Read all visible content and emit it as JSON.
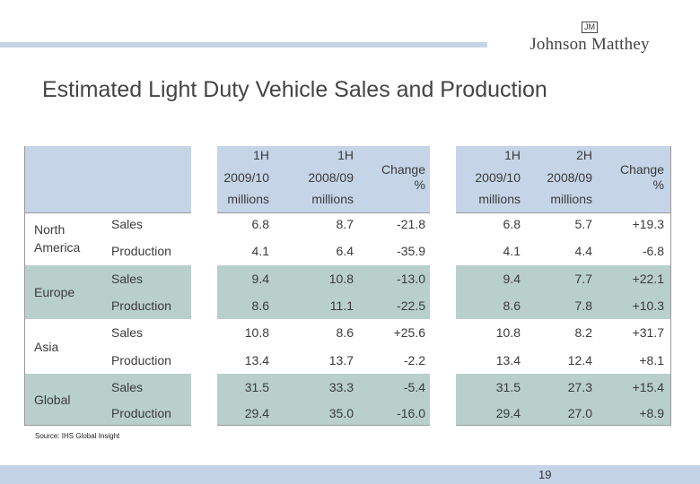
{
  "logo": {
    "mark": "JM",
    "name": "Johnson Matthey"
  },
  "title": "Estimated Light Duty Vehicle Sales and Production",
  "headers": {
    "group1": [
      {
        "l1": "1H",
        "l2": "2009/10",
        "l3": "millions"
      },
      {
        "l1": "1H",
        "l2": "2008/09",
        "l3": "millions"
      },
      {
        "l1": "Change",
        "l2": "%"
      }
    ],
    "group2": [
      {
        "l1": "1H",
        "l2": "2009/10",
        "l3": "millions"
      },
      {
        "l1": "2H",
        "l2": "2008/09",
        "l3": "millions"
      },
      {
        "l1": "Change",
        "l2": "%"
      }
    ]
  },
  "regions": [
    {
      "name": "North America",
      "rows": [
        {
          "type": "Sales",
          "v": [
            "6.8",
            "8.7",
            "-21.8",
            "6.8",
            "5.7",
            "+19.3"
          ]
        },
        {
          "type": "Production",
          "v": [
            "4.1",
            "6.4",
            "-35.9",
            "4.1",
            "4.4",
            "-6.8"
          ]
        }
      ]
    },
    {
      "name": "Europe",
      "rows": [
        {
          "type": "Sales",
          "v": [
            "9.4",
            "10.8",
            "-13.0",
            "9.4",
            "7.7",
            "+22.1"
          ]
        },
        {
          "type": "Production",
          "v": [
            "8.6",
            "11.1",
            "-22.5",
            "8.6",
            "7.8",
            "+10.3"
          ]
        }
      ]
    },
    {
      "name": "Asia",
      "rows": [
        {
          "type": "Sales",
          "v": [
            "10.8",
            "8.6",
            "+25.6",
            "10.8",
            "8.2",
            "+31.7"
          ]
        },
        {
          "type": "Production",
          "v": [
            "13.4",
            "13.7",
            "-2.2",
            "13.4",
            "12.4",
            "+8.1"
          ]
        }
      ]
    },
    {
      "name": "Global",
      "rows": [
        {
          "type": "Sales",
          "v": [
            "31.5",
            "33.3",
            "-5.4",
            "31.5",
            "27.3",
            "+15.4"
          ]
        },
        {
          "type": "Production",
          "v": [
            "29.4",
            "35.0",
            "-16.0",
            "29.4",
            "27.0",
            "+8.9"
          ]
        }
      ]
    }
  ],
  "source": "Source: IHS Global Insight",
  "page_number": "19",
  "colors": {
    "header": "#c6d4e8",
    "band": "#b8cfcc",
    "bar": "#c5d3e6"
  }
}
